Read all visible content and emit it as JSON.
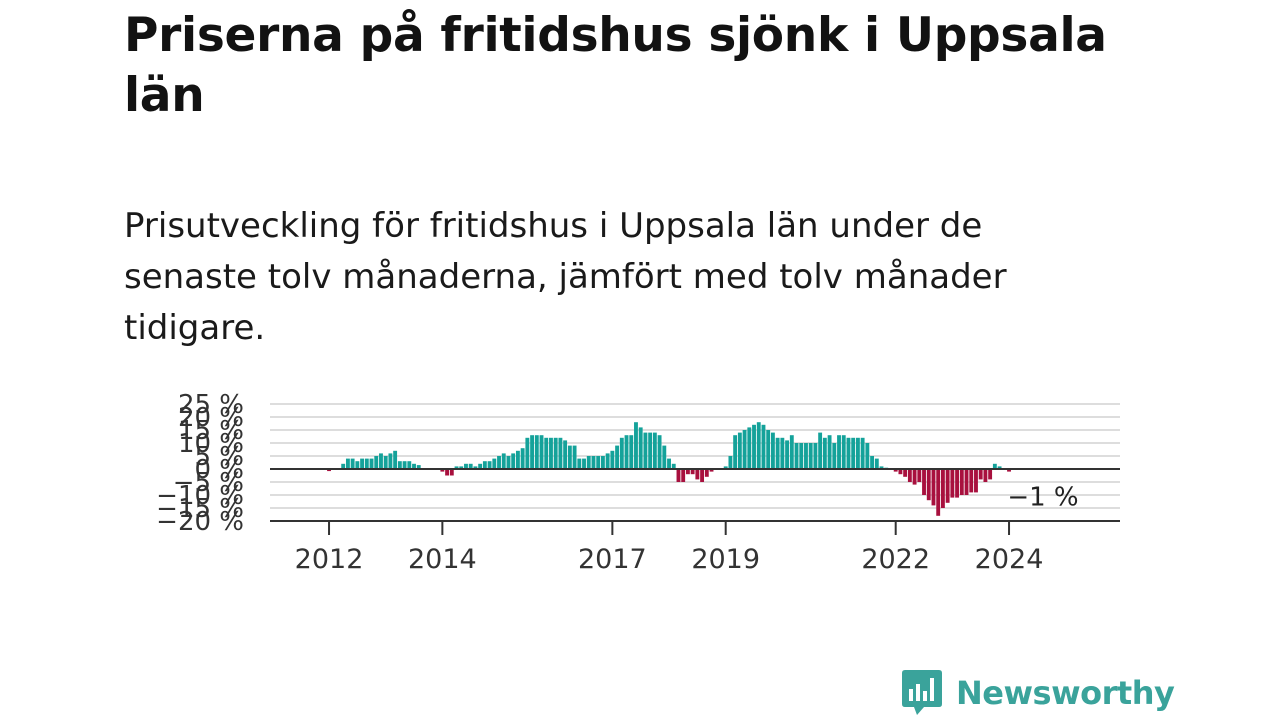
{
  "header": {
    "title": "Priserna på fritidshus sjönk i Uppsala län",
    "subtitle": "Prisutveckling för fritidshus i Uppsala län under de senaste tolv månaderna, jämfört med tolv månader tidigare."
  },
  "brand": {
    "name": "Newsworthy",
    "icon": "newsworthy-logo-icon",
    "color": "#3aa39b"
  },
  "colors": {
    "positive": "#14a29a",
    "negative": "#a8103e",
    "grid": "#dddddd",
    "zero_line": "#333333"
  },
  "chart_data": {
    "type": "bar",
    "x_start": "2011-01",
    "x_end": "2025-12",
    "y_ticks": [
      {
        "value": 25,
        "label": "25 %"
      },
      {
        "value": 20,
        "label": "20 %"
      },
      {
        "value": 15,
        "label": "15 %"
      },
      {
        "value": 10,
        "label": "10 %"
      },
      {
        "value": 5,
        "label": "5 %"
      },
      {
        "value": 0,
        "label": "0 %"
      },
      {
        "value": -5,
        "label": "−5 %"
      },
      {
        "value": -10,
        "label": "−10 %"
      },
      {
        "value": -15,
        "label": "−15 %"
      },
      {
        "value": -20,
        "label": "−20 %"
      }
    ],
    "x_ticks": [
      {
        "date": "2012-01",
        "label": "2012"
      },
      {
        "date": "2014-01",
        "label": "2014"
      },
      {
        "date": "2017-01",
        "label": "2017"
      },
      {
        "date": "2019-01",
        "label": "2019"
      },
      {
        "date": "2022-01",
        "label": "2022"
      },
      {
        "date": "2024-01",
        "label": "2024"
      }
    ],
    "ylim": [
      -20,
      25
    ],
    "last_value_label": "−1 %",
    "series": [
      {
        "values": [
          {
            "date": "2012-01",
            "value": -0.8
          },
          {
            "date": "2012-04",
            "value": 2
          },
          {
            "date": "2012-05",
            "value": 4
          },
          {
            "date": "2012-06",
            "value": 4
          },
          {
            "date": "2012-07",
            "value": 3
          },
          {
            "date": "2012-08",
            "value": 4
          },
          {
            "date": "2012-09",
            "value": 4
          },
          {
            "date": "2012-10",
            "value": 4
          },
          {
            "date": "2012-11",
            "value": 5
          },
          {
            "date": "2012-12",
            "value": 6
          },
          {
            "date": "2013-01",
            "value": 5
          },
          {
            "date": "2013-02",
            "value": 6
          },
          {
            "date": "2013-03",
            "value": 7
          },
          {
            "date": "2013-04",
            "value": 3
          },
          {
            "date": "2013-05",
            "value": 3
          },
          {
            "date": "2013-06",
            "value": 3
          },
          {
            "date": "2013-07",
            "value": 2
          },
          {
            "date": "2013-08",
            "value": 1.5
          },
          {
            "date": "2014-01",
            "value": -1
          },
          {
            "date": "2014-02",
            "value": -2.5
          },
          {
            "date": "2014-03",
            "value": -2.5
          },
          {
            "date": "2014-04",
            "value": 1
          },
          {
            "date": "2014-05",
            "value": 1
          },
          {
            "date": "2014-06",
            "value": 2
          },
          {
            "date": "2014-07",
            "value": 2
          },
          {
            "date": "2014-08",
            "value": 1
          },
          {
            "date": "2014-09",
            "value": 2
          },
          {
            "date": "2014-10",
            "value": 3
          },
          {
            "date": "2014-11",
            "value": 3
          },
          {
            "date": "2014-12",
            "value": 4
          },
          {
            "date": "2015-01",
            "value": 5
          },
          {
            "date": "2015-02",
            "value": 6
          },
          {
            "date": "2015-03",
            "value": 5
          },
          {
            "date": "2015-04",
            "value": 6
          },
          {
            "date": "2015-05",
            "value": 7
          },
          {
            "date": "2015-06",
            "value": 8
          },
          {
            "date": "2015-07",
            "value": 12
          },
          {
            "date": "2015-08",
            "value": 13
          },
          {
            "date": "2015-09",
            "value": 13
          },
          {
            "date": "2015-10",
            "value": 13
          },
          {
            "date": "2015-11",
            "value": 12
          },
          {
            "date": "2015-12",
            "value": 12
          },
          {
            "date": "2016-01",
            "value": 12
          },
          {
            "date": "2016-02",
            "value": 12
          },
          {
            "date": "2016-03",
            "value": 11
          },
          {
            "date": "2016-04",
            "value": 9
          },
          {
            "date": "2016-05",
            "value": 9
          },
          {
            "date": "2016-06",
            "value": 4
          },
          {
            "date": "2016-07",
            "value": 4
          },
          {
            "date": "2016-08",
            "value": 5
          },
          {
            "date": "2016-09",
            "value": 5
          },
          {
            "date": "2016-10",
            "value": 5
          },
          {
            "date": "2016-11",
            "value": 5
          },
          {
            "date": "2016-12",
            "value": 6
          },
          {
            "date": "2017-01",
            "value": 7
          },
          {
            "date": "2017-02",
            "value": 9
          },
          {
            "date": "2017-03",
            "value": 12
          },
          {
            "date": "2017-04",
            "value": 13
          },
          {
            "date": "2017-05",
            "value": 13
          },
          {
            "date": "2017-06",
            "value": 18
          },
          {
            "date": "2017-07",
            "value": 16
          },
          {
            "date": "2017-08",
            "value": 14
          },
          {
            "date": "2017-09",
            "value": 14
          },
          {
            "date": "2017-10",
            "value": 14
          },
          {
            "date": "2017-11",
            "value": 13
          },
          {
            "date": "2017-12",
            "value": 9
          },
          {
            "date": "2018-01",
            "value": 4
          },
          {
            "date": "2018-02",
            "value": 2
          },
          {
            "date": "2018-03",
            "value": -5
          },
          {
            "date": "2018-04",
            "value": -5
          },
          {
            "date": "2018-05",
            "value": -2
          },
          {
            "date": "2018-06",
            "value": -2
          },
          {
            "date": "2018-07",
            "value": -4
          },
          {
            "date": "2018-08",
            "value": -5
          },
          {
            "date": "2018-09",
            "value": -3
          },
          {
            "date": "2018-10",
            "value": -1
          },
          {
            "date": "2019-01",
            "value": 1
          },
          {
            "date": "2019-02",
            "value": 5
          },
          {
            "date": "2019-03",
            "value": 13
          },
          {
            "date": "2019-04",
            "value": 14
          },
          {
            "date": "2019-05",
            "value": 15
          },
          {
            "date": "2019-06",
            "value": 16
          },
          {
            "date": "2019-07",
            "value": 17
          },
          {
            "date": "2019-08",
            "value": 18
          },
          {
            "date": "2019-09",
            "value": 17
          },
          {
            "date": "2019-10",
            "value": 15
          },
          {
            "date": "2019-11",
            "value": 14
          },
          {
            "date": "2019-12",
            "value": 12
          },
          {
            "date": "2020-01",
            "value": 12
          },
          {
            "date": "2020-02",
            "value": 11
          },
          {
            "date": "2020-03",
            "value": 13
          },
          {
            "date": "2020-04",
            "value": 10
          },
          {
            "date": "2020-05",
            "value": 10
          },
          {
            "date": "2020-06",
            "value": 10
          },
          {
            "date": "2020-07",
            "value": 10
          },
          {
            "date": "2020-08",
            "value": 10
          },
          {
            "date": "2020-09",
            "value": 14
          },
          {
            "date": "2020-10",
            "value": 12
          },
          {
            "date": "2020-11",
            "value": 13
          },
          {
            "date": "2020-12",
            "value": 10
          },
          {
            "date": "2021-01",
            "value": 13
          },
          {
            "date": "2021-02",
            "value": 13
          },
          {
            "date": "2021-03",
            "value": 12
          },
          {
            "date": "2021-04",
            "value": 12
          },
          {
            "date": "2021-05",
            "value": 12
          },
          {
            "date": "2021-06",
            "value": 12
          },
          {
            "date": "2021-07",
            "value": 10
          },
          {
            "date": "2021-08",
            "value": 5
          },
          {
            "date": "2021-09",
            "value": 4
          },
          {
            "date": "2021-10",
            "value": 1
          },
          {
            "date": "2021-11",
            "value": 0.5
          },
          {
            "date": "2022-01",
            "value": -1
          },
          {
            "date": "2022-02",
            "value": -2
          },
          {
            "date": "2022-03",
            "value": -3
          },
          {
            "date": "2022-04",
            "value": -5
          },
          {
            "date": "2022-05",
            "value": -6
          },
          {
            "date": "2022-06",
            "value": -5
          },
          {
            "date": "2022-07",
            "value": -10
          },
          {
            "date": "2022-08",
            "value": -12
          },
          {
            "date": "2022-09",
            "value": -14
          },
          {
            "date": "2022-10",
            "value": -18
          },
          {
            "date": "2022-11",
            "value": -15
          },
          {
            "date": "2022-12",
            "value": -13
          },
          {
            "date": "2023-01",
            "value": -11
          },
          {
            "date": "2023-02",
            "value": -11
          },
          {
            "date": "2023-03",
            "value": -10
          },
          {
            "date": "2023-04",
            "value": -10
          },
          {
            "date": "2023-05",
            "value": -9
          },
          {
            "date": "2023-06",
            "value": -9
          },
          {
            "date": "2023-07",
            "value": -4
          },
          {
            "date": "2023-08",
            "value": -5
          },
          {
            "date": "2023-09",
            "value": -4
          },
          {
            "date": "2023-10",
            "value": 2
          },
          {
            "date": "2023-11",
            "value": 1
          },
          {
            "date": "2024-01",
            "value": -1
          }
        ]
      }
    ]
  }
}
